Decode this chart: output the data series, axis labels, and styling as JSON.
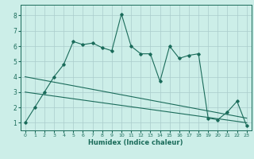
{
  "title": "",
  "xlabel": "Humidex (Indice chaleur)",
  "bg_color": "#cceee8",
  "grid_color": "#aacccc",
  "line_color": "#1a6b5a",
  "xlim": [
    -0.5,
    23.5
  ],
  "ylim": [
    0.5,
    8.7
  ],
  "yticks": [
    1,
    2,
    3,
    4,
    5,
    6,
    7,
    8
  ],
  "xticks": [
    0,
    1,
    2,
    3,
    4,
    5,
    6,
    7,
    8,
    9,
    10,
    11,
    12,
    13,
    14,
    15,
    16,
    17,
    18,
    19,
    20,
    21,
    22,
    23
  ],
  "main_x": [
    0,
    1,
    2,
    3,
    4,
    5,
    6,
    7,
    8,
    9,
    10,
    11,
    12,
    13,
    14,
    15,
    16,
    17,
    18,
    19,
    20,
    21,
    22,
    23
  ],
  "main_y": [
    1.0,
    2.0,
    3.0,
    4.0,
    4.8,
    6.3,
    6.1,
    6.2,
    5.9,
    5.7,
    8.1,
    6.0,
    5.5,
    5.5,
    3.7,
    6.0,
    5.2,
    5.4,
    5.5,
    1.3,
    1.2,
    1.7,
    2.4,
    0.8
  ],
  "trend1_x": [
    0,
    23
  ],
  "trend1_y": [
    4.0,
    1.3
  ],
  "trend2_x": [
    0,
    23
  ],
  "trend2_y": [
    3.0,
    1.0
  ],
  "xlabel_fontsize": 6,
  "tick_fontsize_x": 4.5,
  "tick_fontsize_y": 5.5
}
